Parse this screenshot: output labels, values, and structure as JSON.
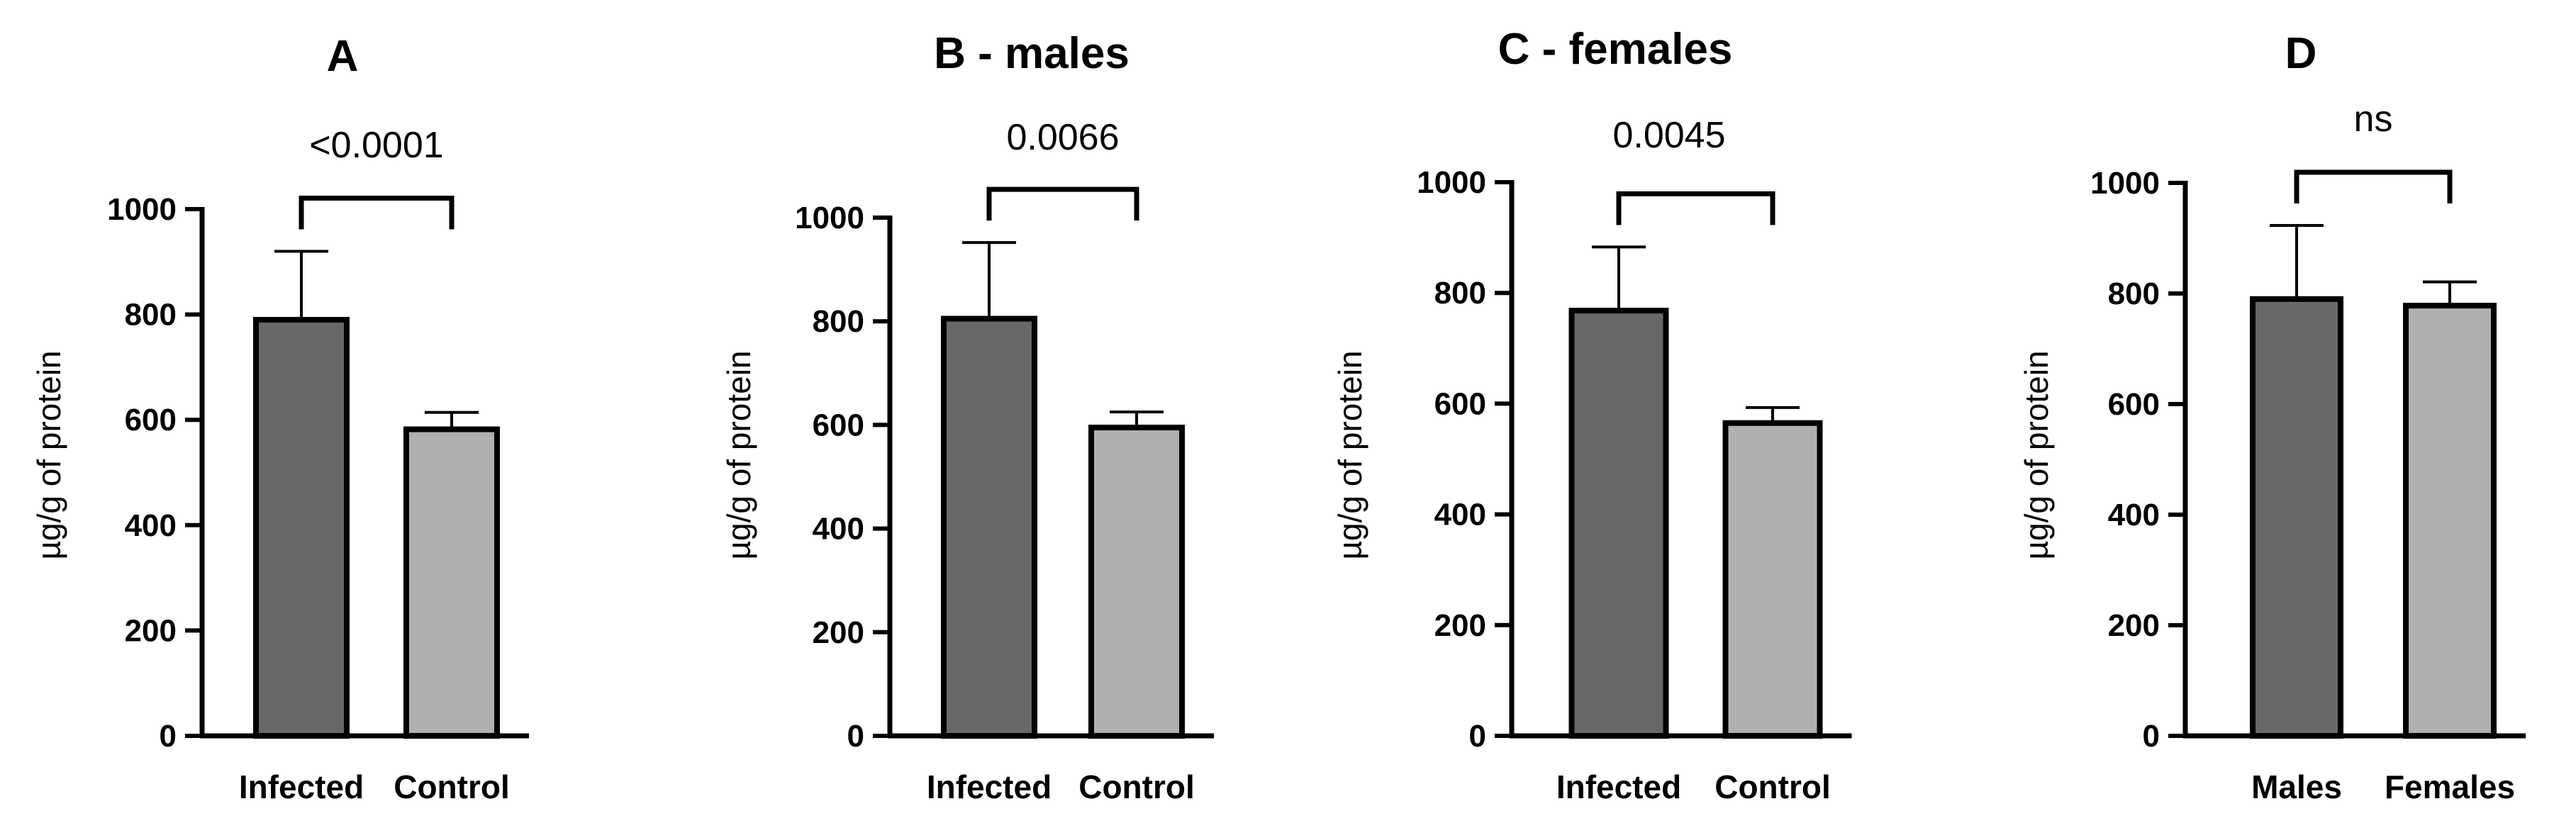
{
  "colors": {
    "infected": "#686868",
    "control": "#b0b0b0",
    "males": "#686868",
    "females": "#b0b0b0",
    "axis": "#000000"
  },
  "chart_data": [
    {
      "type": "bar",
      "title": "A",
      "categories": [
        "Infected",
        "Control"
      ],
      "values": [
        790,
        582
      ],
      "errors": [
        130,
        32
      ],
      "ylabel": "µg/g of protein",
      "ylim": [
        0,
        1000
      ],
      "yticks": [
        "0",
        "200",
        "400",
        "600",
        "800",
        "1000"
      ],
      "significance": "<0.0001"
    },
    {
      "type": "bar",
      "title": "B - males",
      "categories": [
        "Infected",
        "Control"
      ],
      "values": [
        805,
        595
      ],
      "errors": [
        147,
        30
      ],
      "ylabel": "µg/g of protein",
      "ylim": [
        0,
        1000
      ],
      "yticks": [
        "0",
        "200",
        "400",
        "600",
        "800",
        "1000"
      ],
      "significance": "0.0066"
    },
    {
      "type": "bar",
      "title": "C - females",
      "categories": [
        "Infected",
        "Control"
      ],
      "values": [
        768,
        565
      ],
      "errors": [
        115,
        28
      ],
      "ylabel": "µg/g of protein",
      "ylim": [
        0,
        1000
      ],
      "yticks": [
        "0",
        "200",
        "400",
        "600",
        "800",
        "1000"
      ],
      "significance": "0.0045"
    },
    {
      "type": "bar",
      "title": "D",
      "categories": [
        "Males",
        "Females"
      ],
      "values": [
        790,
        778
      ],
      "errors": [
        133,
        43
      ],
      "ylabel": "µg/g of protein",
      "ylim": [
        0,
        1000
      ],
      "yticks": [
        "0",
        "200",
        "400",
        "600",
        "800",
        "1000"
      ],
      "significance": "ns"
    }
  ]
}
